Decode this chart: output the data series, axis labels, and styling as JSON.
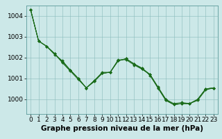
{
  "title": "Graphe pression niveau de la mer (hPa)",
  "background_color": "#cce8e8",
  "plot_bg_color": "#cce8e8",
  "grid_color": "#88bbbb",
  "line_color": "#1a6b1a",
  "marker_color": "#1a6b1a",
  "xlim": [
    -0.5,
    23.5
  ],
  "ylim": [
    999.3,
    1004.5
  ],
  "yticks": [
    1000,
    1001,
    1002,
    1003,
    1004
  ],
  "xticks": [
    0,
    1,
    2,
    3,
    4,
    5,
    6,
    7,
    8,
    9,
    10,
    11,
    12,
    13,
    14,
    15,
    16,
    17,
    18,
    19,
    20,
    21,
    22,
    23
  ],
  "series": [
    [
      1004.3,
      1002.8,
      1002.55,
      1002.2,
      1001.75,
      1001.35,
      1000.95,
      1000.55,
      1000.9,
      1001.25,
      1001.3,
      1001.85,
      1001.95,
      1001.7,
      1001.5,
      1001.15,
      1000.55,
      999.95,
      999.75,
      999.8,
      999.8,
      999.95,
      1000.45,
      1000.55
    ],
    [
      1004.3,
      1002.8,
      1002.55,
      1002.15,
      1001.85,
      1001.4,
      1001.0,
      1000.55,
      1000.85,
      1001.25,
      1001.3,
      1001.85,
      1001.95,
      1001.7,
      1001.45,
      1001.2,
      1000.6,
      1000.0,
      999.8,
      999.85,
      999.8,
      1000.0,
      1000.5,
      1000.55
    ],
    [
      1004.3,
      1002.8,
      1002.55,
      1002.2,
      1001.8,
      1001.4,
      1001.0,
      1000.55,
      1000.9,
      1001.3,
      1001.3,
      1001.9,
      1001.9,
      1001.65,
      1001.45,
      1001.2,
      1000.55,
      999.95,
      999.75,
      999.8,
      999.8,
      1000.0,
      1000.5,
      1000.55
    ],
    [
      1004.3,
      1002.8,
      1002.55,
      1002.2,
      1001.8,
      1001.4,
      1001.0,
      1000.55,
      1000.9,
      1001.25,
      1001.3,
      1001.85,
      1001.95,
      1001.7,
      1001.5,
      1001.2,
      1000.6,
      1000.0,
      999.75,
      999.8,
      999.8,
      1000.0,
      1000.5,
      1000.55
    ]
  ],
  "title_fontsize": 7.5,
  "tick_fontsize": 6.5
}
